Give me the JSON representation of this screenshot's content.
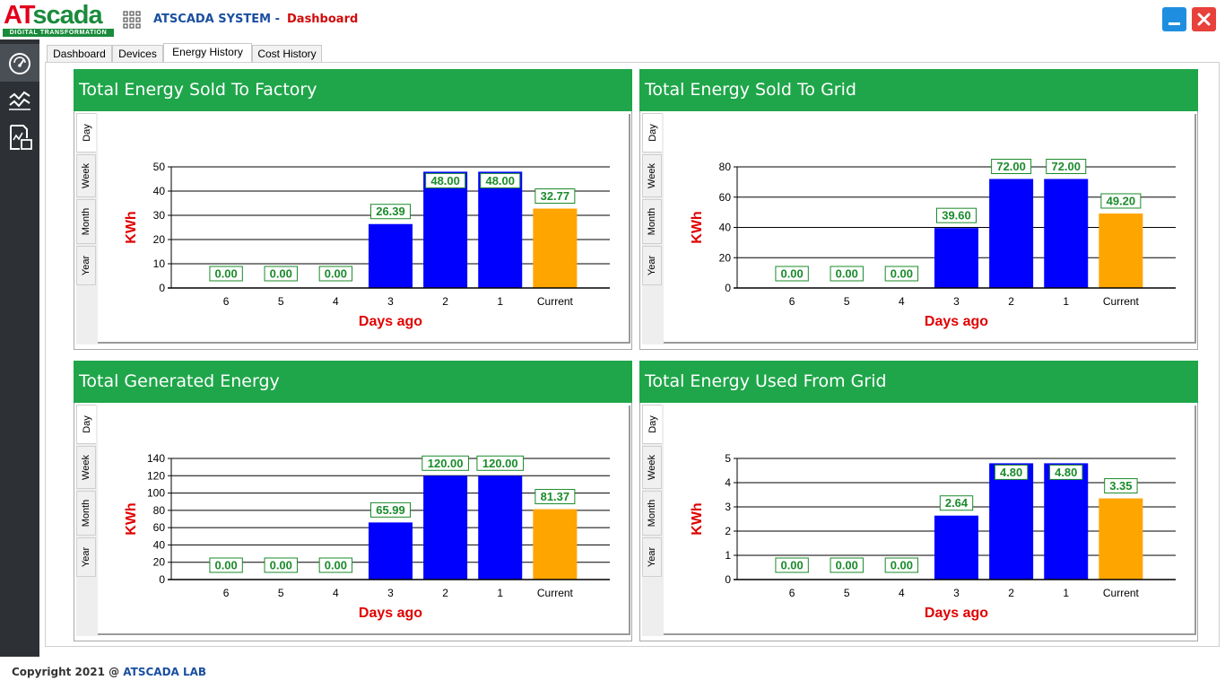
{
  "app": {
    "logo_text_a": "AT",
    "logo_text_b": "scada",
    "logo_tagline": "DIGITAL TRANSFORMATION",
    "title": "ATSCADA SYSTEM -",
    "page": "Dashboard"
  },
  "colors": {
    "header_green": "#1fa64a",
    "bar_blue": "#0000ff",
    "bar_current": "#ffa500",
    "label_green": "#1a8b2a",
    "axis_title_red": "#e00000"
  },
  "sidebar": {
    "items": [
      {
        "icon": "speedometer-icon"
      },
      {
        "icon": "trend-lines-icon"
      },
      {
        "icon": "report-chart-icon"
      }
    ]
  },
  "tabs": [
    "Dashboard",
    "Devices",
    "Energy History",
    "Cost History"
  ],
  "active_tab": "Energy History",
  "panels": [
    {
      "title": "Total Energy Sold To Factory",
      "period_tabs": [
        "Day",
        "Week",
        "Month",
        "Year"
      ]
    },
    {
      "title": "Total Energy Sold To Grid",
      "period_tabs": [
        "Day",
        "Week",
        "Month",
        "Year"
      ]
    },
    {
      "title": "Total Generated Energy",
      "period_tabs": [
        "Day",
        "Week",
        "Month",
        "Year"
      ]
    },
    {
      "title": "Total Energy Used From Grid",
      "period_tabs": [
        "Day",
        "Week",
        "Month",
        "Year"
      ]
    }
  ],
  "chart_data": [
    {
      "type": "bar",
      "categories": [
        "6",
        "5",
        "4",
        "3",
        "2",
        "1",
        "Current"
      ],
      "values": [
        0,
        0,
        0,
        26.39,
        48.0,
        48.0,
        32.77
      ],
      "data_labels": [
        "0.00",
        "0.00",
        "0.00",
        "26.39",
        "48.00",
        "48.00",
        "32.77"
      ],
      "xlabel": "Days ago",
      "ylabel": "KWh",
      "ylim": [
        0,
        50
      ],
      "yticks": [
        0,
        10,
        20,
        30,
        40,
        50
      ],
      "grid": true
    },
    {
      "type": "bar",
      "categories": [
        "6",
        "5",
        "4",
        "3",
        "2",
        "1",
        "Current"
      ],
      "values": [
        0,
        0,
        0,
        39.6,
        72.0,
        72.0,
        49.2
      ],
      "data_labels": [
        "0.00",
        "0.00",
        "0.00",
        "39.60",
        "72.00",
        "72.00",
        "49.20"
      ],
      "xlabel": "Days ago",
      "ylabel": "KWh",
      "ylim": [
        0,
        80
      ],
      "yticks": [
        0,
        20,
        40,
        60,
        80
      ],
      "grid": true
    },
    {
      "type": "bar",
      "categories": [
        "6",
        "5",
        "4",
        "3",
        "2",
        "1",
        "Current"
      ],
      "values": [
        0,
        0,
        0,
        65.99,
        120.0,
        120.0,
        81.37
      ],
      "data_labels": [
        "0.00",
        "0.00",
        "0.00",
        "65.99",
        "120.00",
        "120.00",
        "81.37"
      ],
      "xlabel": "Days ago",
      "ylabel": "KWh",
      "ylim": [
        0,
        140
      ],
      "yticks": [
        0,
        20,
        40,
        60,
        80,
        100,
        120,
        140
      ],
      "grid": true
    },
    {
      "type": "bar",
      "categories": [
        "6",
        "5",
        "4",
        "3",
        "2",
        "1",
        "Current"
      ],
      "values": [
        0,
        0,
        0,
        2.64,
        4.8,
        4.8,
        3.35
      ],
      "data_labels": [
        "0.00",
        "0.00",
        "0.00",
        "2.64",
        "4.80",
        "4.80",
        "3.35"
      ],
      "xlabel": "Days ago",
      "ylabel": "KWh",
      "ylim": [
        0,
        5
      ],
      "yticks": [
        0,
        1,
        2,
        3,
        4,
        5
      ],
      "grid": true
    }
  ],
  "footer": {
    "copyright": "Copyright 2021 @ ",
    "lab": "ATSCADA LAB"
  }
}
